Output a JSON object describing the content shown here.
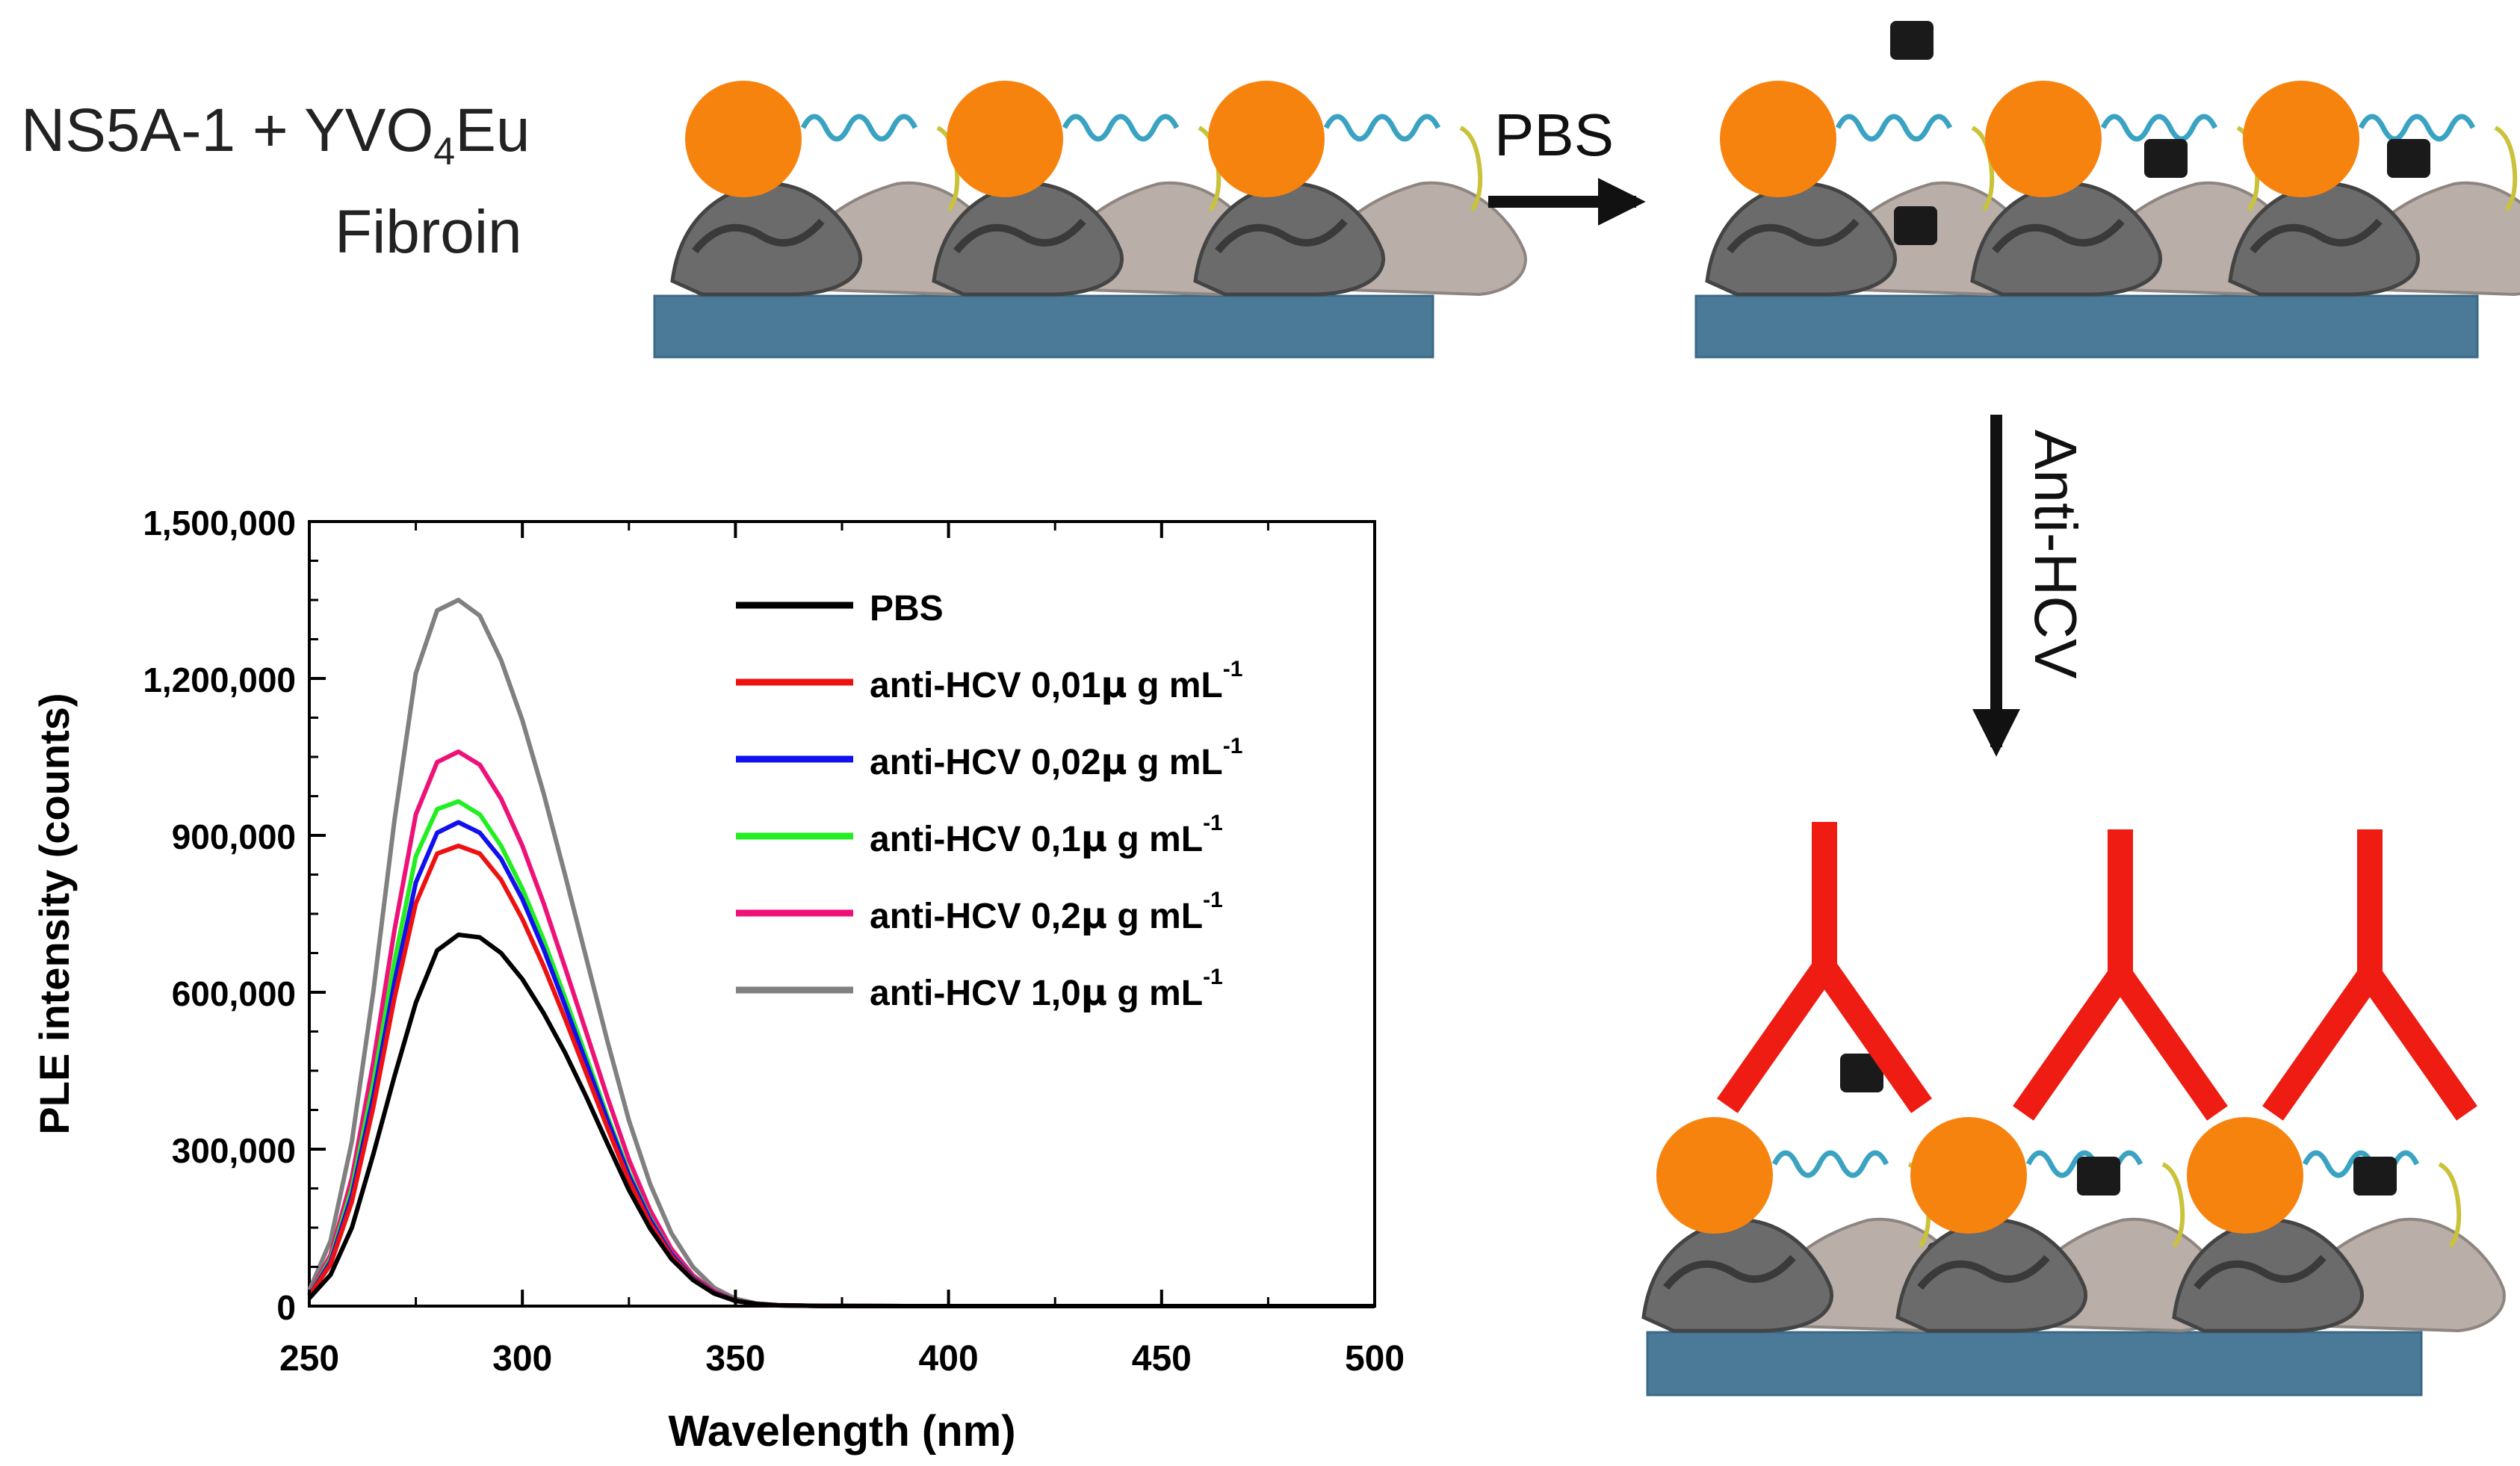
{
  "schematic": {
    "label_line1_prefix": "NS5A-1 + YVO",
    "label_line1_subscript": "4",
    "label_line1_suffix": "Eu",
    "label_line2": "Fibroin",
    "step1_arrow_label": "PBS",
    "step2_arrow_label": "Anti-HCV",
    "colors": {
      "substrate": "#4a7a97",
      "nanoparticle": "#f7830f",
      "antibody": "#ee1c12",
      "salt_block": "#1a1a1a",
      "protein_dark": "#6b6b6b",
      "protein_light": "#b9aea8"
    }
  },
  "chart_data": {
    "type": "line",
    "xlabel": "Wavelength (nm)",
    "ylabel": "PLE intensity (counts)",
    "xlim": [
      250,
      500
    ],
    "ylim": [
      0,
      1500000
    ],
    "xticks": [
      "250",
      "300",
      "350",
      "400",
      "450",
      "500"
    ],
    "yticks": [
      "0",
      "300,000",
      "600,000",
      "900,000",
      "1,200,000",
      "1,500,000"
    ],
    "x": [
      250,
      255,
      260,
      265,
      270,
      275,
      280,
      285,
      290,
      295,
      300,
      305,
      310,
      315,
      320,
      325,
      330,
      335,
      340,
      345,
      350,
      355,
      360,
      370,
      380,
      390,
      400,
      420,
      450,
      500
    ],
    "series": [
      {
        "name": "PBS",
        "color": "#000000",
        "values": [
          15000,
          60000,
          150000,
          290000,
          440000,
          580000,
          680000,
          710000,
          705000,
          675000,
          625000,
          560000,
          485000,
          400000,
          310000,
          222000,
          148000,
          90000,
          50000,
          24000,
          10000,
          4000,
          1500,
          400,
          100,
          0,
          0,
          0,
          0,
          0
        ]
      },
      {
        "name": "anti-HCV 0,01µg mL-1",
        "label_main": "anti-HCV 0,01",
        "label_unit": "µ",
        "label_suffix": "g mL",
        "label_superscript": "-1",
        "color": "#ee1111",
        "values": [
          19000,
          80000,
          200000,
          380000,
          590000,
          770000,
          865000,
          880000,
          865000,
          815000,
          740000,
          650000,
          550000,
          445000,
          340000,
          240000,
          158000,
          95000,
          52000,
          25000,
          10000,
          4000,
          1500,
          400,
          100,
          0,
          0,
          0,
          0,
          0
        ]
      },
      {
        "name": "anti-HCV 0,02µg mL-1",
        "label_main": "anti-HCV 0,02",
        "label_unit": "µ",
        "label_suffix": "g mL",
        "label_superscript": "-1",
        "color": "#1111ee",
        "values": [
          20000,
          85000,
          212000,
          400000,
          620000,
          810000,
          905000,
          925000,
          905000,
          855000,
          778000,
          682000,
          575000,
          465000,
          355000,
          250000,
          165000,
          99000,
          54000,
          26000,
          10500,
          4000,
          1500,
          400,
          100,
          0,
          0,
          0,
          0,
          0
        ]
      },
      {
        "name": "anti-HCV 0,1µg mL-1",
        "label_main": "anti-HCV 0,1",
        "label_unit": "µ",
        "label_suffix": "g mL",
        "label_superscript": "-1",
        "color": "#22ee22",
        "values": [
          21000,
          90000,
          225000,
          425000,
          660000,
          860000,
          950000,
          965000,
          940000,
          880000,
          798000,
          700000,
          590000,
          476000,
          362000,
          255000,
          168000,
          100000,
          55000,
          26000,
          10500,
          4000,
          1500,
          400,
          100,
          0,
          0,
          0,
          0,
          0
        ]
      },
      {
        "name": "anti-HCV 0,2µg mL-1",
        "label_main": "anti-HCV 0,2",
        "label_unit": "µ",
        "label_suffix": "g mL",
        "label_superscript": "-1",
        "color": "#ee1177",
        "values": [
          23000,
          98000,
          245000,
          465000,
          720000,
          940000,
          1040000,
          1060000,
          1035000,
          970000,
          880000,
          770000,
          648000,
          523000,
          398000,
          280000,
          183000,
          109000,
          59000,
          28000,
          11000,
          4000,
          1500,
          400,
          100,
          0,
          0,
          0,
          0,
          0
        ]
      },
      {
        "name": "anti-HCV 1,0µg mL-1",
        "label_main": "anti-HCV 1,0",
        "label_unit": "µ",
        "label_suffix": "g mL",
        "label_superscript": "-1",
        "color": "#808080",
        "values": [
          30000,
          125000,
          315000,
          600000,
          930000,
          1210000,
          1330000,
          1350000,
          1320000,
          1235000,
          1120000,
          980000,
          825000,
          665000,
          505000,
          355000,
          233000,
          139000,
          75000,
          35000,
          14000,
          5000,
          2000,
          500,
          100,
          0,
          0,
          0,
          0,
          0
        ]
      }
    ],
    "legend_position": "top-right inside",
    "grid": false
  }
}
